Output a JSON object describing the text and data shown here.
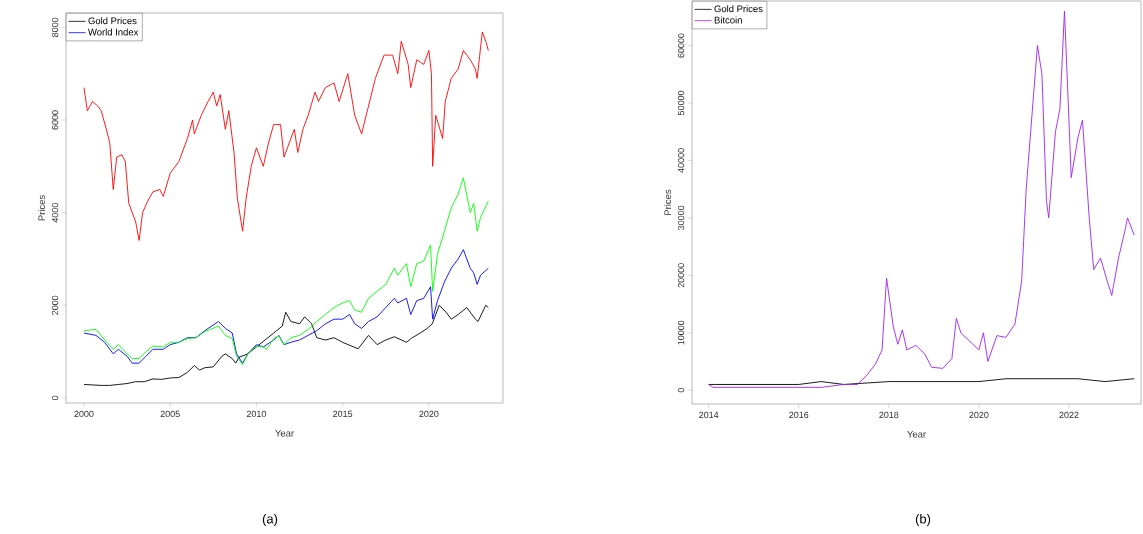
{
  "chart_data": [
    {
      "type": "line",
      "xlabel": "Year",
      "ylabel": "Prices",
      "xlim": [
        1998.96,
        2024.3
      ],
      "ylim": [
        -110,
        8310
      ],
      "xticks": [
        2000,
        2005,
        2010,
        2015,
        2020
      ],
      "yticks": [
        0,
        2000,
        4000,
        6000,
        8000
      ],
      "legend": "top left",
      "annotations": [
        "(a)"
      ],
      "series": [
        {
          "name": "Gold Prices",
          "color": "#000000",
          "x": [
            2000,
            2000.5,
            2001,
            2001.5,
            2002,
            2002.5,
            2003,
            2003.5,
            2004,
            2004.5,
            2005,
            2005.5,
            2006,
            2006.4,
            2006.7,
            2007,
            2007.5,
            2008,
            2008.2,
            2008.6,
            2008.8,
            2009,
            2009.5,
            2010,
            2010.5,
            2011,
            2011.5,
            2011.7,
            2012,
            2012.5,
            2012.8,
            2013.2,
            2013.5,
            2014,
            2014.5,
            2015,
            2015.9,
            2016.5,
            2017,
            2017.5,
            2018,
            2018.7,
            2019,
            2019.5,
            2019.9,
            2020.2,
            2020.6,
            2021,
            2021.3,
            2021.7,
            2022.2,
            2022.7,
            2022.85,
            2023.3,
            2023.45
          ],
          "values": [
            290,
            280,
            270,
            270,
            290,
            310,
            350,
            350,
            410,
            400,
            430,
            440,
            550,
            700,
            600,
            650,
            670,
            900,
            950,
            850,
            750,
            880,
            950,
            1100,
            1250,
            1400,
            1550,
            1850,
            1650,
            1600,
            1750,
            1600,
            1300,
            1250,
            1300,
            1200,
            1060,
            1350,
            1150,
            1250,
            1320,
            1200,
            1290,
            1400,
            1500,
            1600,
            2000,
            1850,
            1700,
            1800,
            1950,
            1700,
            1650,
            2000,
            1950
          ]
        },
        {
          "color": "#ff0000",
          "x": [
            2000,
            2000.2,
            2000.5,
            2000.8,
            2001,
            2001.3,
            2001.5,
            2001.7,
            2001.9,
            2002.2,
            2002.4,
            2002.6,
            2002.8,
            2003,
            2003.2,
            2003.4,
            2003.7,
            2004,
            2004.4,
            2004.6,
            2005,
            2005.5,
            2006,
            2006.3,
            2006.4,
            2006.8,
            2007.2,
            2007.5,
            2007.7,
            2007.9,
            2008.2,
            2008.4,
            2008.7,
            2008.9,
            2009.2,
            2009.4,
            2009.7,
            2010,
            2010.4,
            2010.7,
            2011,
            2011.4,
            2011.6,
            2011.8,
            2012.2,
            2012.4,
            2012.7,
            2013,
            2013.4,
            2013.6,
            2014,
            2014.5,
            2014.8,
            2015.3,
            2015.7,
            2016.1,
            2016.5,
            2016.9,
            2017.4,
            2017.9,
            2018.2,
            2018.4,
            2018.8,
            2018.95,
            2019.3,
            2019.7,
            2020,
            2020.15,
            2020.22,
            2020.4,
            2020.8,
            2020.95,
            2021.3,
            2021.7,
            2022,
            2022.4,
            2022.7,
            2022.8,
            2023.1,
            2023.3,
            2023.45
          ],
          "values": [
            6700,
            6200,
            6400,
            6300,
            6200,
            5800,
            5500,
            4500,
            5200,
            5250,
            5100,
            4200,
            4000,
            3800,
            3400,
            4000,
            4250,
            4450,
            4500,
            4350,
            4850,
            5100,
            5600,
            6000,
            5700,
            6100,
            6400,
            6600,
            6300,
            6550,
            5800,
            6200,
            5300,
            4300,
            3600,
            4300,
            5000,
            5400,
            5000,
            5500,
            5900,
            5900,
            5200,
            5400,
            5800,
            5300,
            5800,
            6100,
            6600,
            6400,
            6700,
            6800,
            6400,
            7000,
            6100,
            5700,
            6300,
            6900,
            7400,
            7400,
            7000,
            7700,
            7200,
            6700,
            7300,
            7200,
            7500,
            7000,
            5000,
            6100,
            5600,
            6400,
            6900,
            7100,
            7500,
            7300,
            7100,
            6900,
            7900,
            7700,
            7500
          ]
        },
        {
          "name": "World Index",
          "color": "#0000ff",
          "x": [
            2000,
            2000.7,
            2001.2,
            2001.7,
            2002,
            2002.5,
            2002.8,
            2003.2,
            2003.6,
            2004,
            2004.6,
            2005,
            2005.5,
            2006,
            2006.5,
            2007,
            2007.8,
            2008.2,
            2008.6,
            2008.85,
            2009.2,
            2009.5,
            2010,
            2010.4,
            2011,
            2011.3,
            2011.6,
            2012,
            2012.5,
            2013,
            2013.5,
            2014,
            2014.5,
            2015,
            2015.4,
            2015.7,
            2016.1,
            2016.5,
            2017,
            2017.5,
            2018,
            2018.2,
            2018.7,
            2018.95,
            2019.3,
            2019.7,
            2020.1,
            2020.22,
            2020.5,
            2020.9,
            2021.3,
            2021.7,
            2022,
            2022.4,
            2022.6,
            2022.8,
            2023,
            2023.45
          ],
          "values": [
            1400,
            1350,
            1200,
            950,
            1050,
            900,
            750,
            750,
            900,
            1050,
            1050,
            1150,
            1200,
            1300,
            1300,
            1450,
            1650,
            1500,
            1400,
            950,
            750,
            950,
            1150,
            1100,
            1250,
            1350,
            1150,
            1200,
            1250,
            1350,
            1450,
            1600,
            1700,
            1700,
            1800,
            1600,
            1500,
            1650,
            1750,
            1950,
            2150,
            2050,
            2150,
            1800,
            2100,
            2150,
            2400,
            1700,
            2100,
            2500,
            2800,
            3000,
            3200,
            2800,
            2700,
            2450,
            2650,
            2800
          ]
        },
        {
          "color": "#00ff00",
          "x": [
            2000,
            2000.7,
            2001.2,
            2001.7,
            2002,
            2002.5,
            2002.8,
            2003.2,
            2003.6,
            2004,
            2004.6,
            2005,
            2005.5,
            2006,
            2006.5,
            2007,
            2007.8,
            2008.2,
            2008.6,
            2008.85,
            2009.2,
            2009.5,
            2010,
            2010.4,
            2010.6,
            2011,
            2011.3,
            2011.6,
            2012,
            2012.5,
            2013,
            2013.5,
            2014,
            2014.5,
            2015,
            2015.4,
            2015.7,
            2016.1,
            2016.5,
            2017,
            2017.5,
            2018,
            2018.2,
            2018.7,
            2018.95,
            2019.3,
            2019.7,
            2020.1,
            2020.22,
            2020.5,
            2020.9,
            2021.3,
            2021.7,
            2022,
            2022.4,
            2022.6,
            2022.8,
            2023,
            2023.45
          ],
          "values": [
            1450,
            1480,
            1250,
            1050,
            1150,
            950,
            850,
            850,
            1000,
            1120,
            1100,
            1200,
            1200,
            1280,
            1300,
            1430,
            1550,
            1350,
            1280,
            900,
            720,
            950,
            1120,
            1100,
            1050,
            1280,
            1340,
            1150,
            1300,
            1350,
            1480,
            1650,
            1800,
            1950,
            2050,
            2100,
            1900,
            1850,
            2150,
            2300,
            2450,
            2800,
            2650,
            2900,
            2400,
            2900,
            2950,
            3300,
            2300,
            3100,
            3600,
            4100,
            4400,
            4750,
            4000,
            4200,
            3600,
            3900,
            4250
          ]
        }
      ]
    },
    {
      "type": "line",
      "xlabel": "Year",
      "ylabel": "Prices",
      "xlim": [
        2013.63,
        2023.6
      ],
      "ylim": [
        -2400,
        67750
      ],
      "xticks": [
        2014,
        2016,
        2018,
        2020,
        2022
      ],
      "yticks": [
        0,
        10000,
        20000,
        30000,
        40000,
        50000,
        60000
      ],
      "legend": "top left",
      "annotations": [
        "(b)"
      ],
      "series": [
        {
          "name": "Gold Prices",
          "color": "#000000",
          "x": [
            2014,
            2015,
            2016,
            2016.5,
            2017,
            2018,
            2019,
            2020,
            2020.6,
            2021.5,
            2022.2,
            2022.8,
            2023.45
          ],
          "values": [
            1000,
            1000,
            1000,
            1500,
            1000,
            1500,
            1500,
            1500,
            2000,
            2000,
            2000,
            1500,
            2000
          ]
        },
        {
          "name": "Bitcoin",
          "color": "#a020f0",
          "x": [
            2014,
            2014.1,
            2014.2,
            2014.4,
            2015,
            2015.5,
            2016,
            2016.5,
            2017,
            2017.3,
            2017.5,
            2017.7,
            2017.85,
            2017.95,
            2018.1,
            2018.2,
            2018.3,
            2018.4,
            2018.6,
            2018.8,
            2018.95,
            2019.2,
            2019.4,
            2019.5,
            2019.6,
            2019.8,
            2020,
            2020.1,
            2020.2,
            2020.4,
            2020.6,
            2020.8,
            2020.95,
            2021.05,
            2021.1,
            2021.2,
            2021.3,
            2021.4,
            2021.5,
            2021.55,
            2021.7,
            2021.8,
            2021.9,
            2022,
            2022.05,
            2022.2,
            2022.3,
            2022.45,
            2022.55,
            2022.7,
            2022.85,
            2022.95,
            2023.1,
            2023.25,
            2023.3,
            2023.45
          ],
          "values": [
            1000,
            500,
            500,
            500,
            500,
            500,
            500,
            500,
            1000,
            1000,
            2500,
            4500,
            7000,
            19500,
            11000,
            8000,
            10500,
            7000,
            7800,
            6300,
            4000,
            3800,
            5500,
            12500,
            10000,
            8500,
            7000,
            10000,
            5000,
            9500,
            9200,
            11500,
            19000,
            35000,
            40000,
            50000,
            60000,
            55000,
            33000,
            30000,
            45000,
            49000,
            66000,
            47000,
            37000,
            44000,
            47000,
            30000,
            21000,
            23000,
            19000,
            16500,
            23000,
            28000,
            30000,
            27000
          ]
        }
      ]
    }
  ]
}
